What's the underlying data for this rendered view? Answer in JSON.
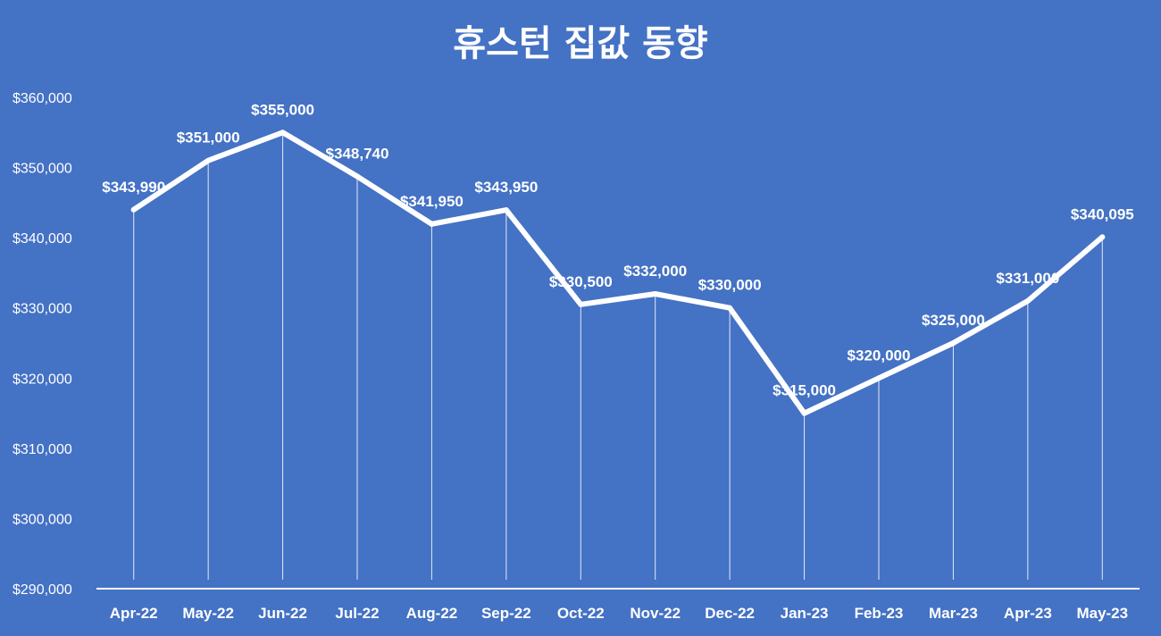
{
  "colors": {
    "background": "#4472c4",
    "line": "#ffffff",
    "text": "#ffffff"
  },
  "chart_data": {
    "type": "line",
    "title": "휴스턴 집값 동향",
    "xlabel": "",
    "ylabel": "",
    "categories": [
      "Apr-22",
      "May-22",
      "Jun-22",
      "Jul-22",
      "Aug-22",
      "Sep-22",
      "Oct-22",
      "Nov-22",
      "Dec-22",
      "Jan-23",
      "Feb-23",
      "Mar-23",
      "Apr-23",
      "May-23"
    ],
    "values": [
      343990,
      351000,
      355000,
      348740,
      341950,
      343950,
      330500,
      332000,
      330000,
      315000,
      320000,
      325000,
      331000,
      340095
    ],
    "data_labels": [
      "$343,990",
      "$351,000",
      "$355,000",
      "$348,740",
      "$341,950",
      "$343,950",
      "$330,500",
      "$332,000",
      "$330,000",
      "$315,000",
      "$320,000",
      "$325,000",
      "$331,000",
      "$340,095"
    ],
    "ylim": [
      290000,
      360000
    ],
    "y_ticks": [
      290000,
      300000,
      310000,
      320000,
      330000,
      340000,
      350000,
      360000
    ],
    "y_tick_labels": [
      "$290,000",
      "$300,000",
      "$310,000",
      "$320,000",
      "$330,000",
      "$340,000",
      "$350,000",
      "$360,000"
    ],
    "grid": false,
    "drop_lines": true,
    "legend": "none"
  }
}
